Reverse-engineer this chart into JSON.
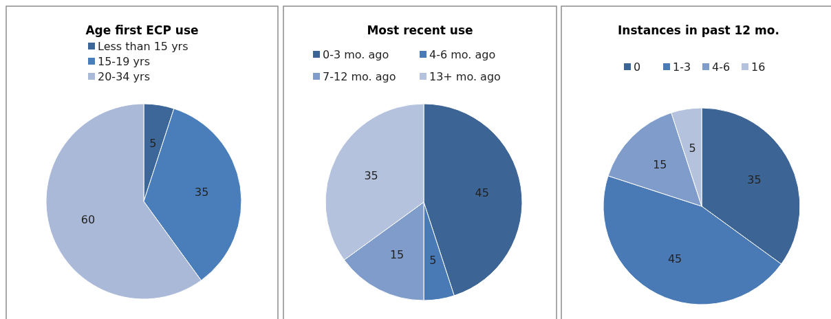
{
  "chart_data": [
    {
      "type": "pie",
      "title": "Age first ECP use",
      "categories": [
        "Less than 15 yrs",
        "15-19 yrs",
        "20-34 yrs"
      ],
      "values": [
        5,
        35,
        60
      ],
      "colors": [
        "#3d6799",
        "#4a7ebb",
        "#aab9d8"
      ],
      "data_labels": true,
      "legend": "top"
    },
    {
      "type": "pie",
      "title": "Most recent use",
      "categories": [
        "0-3 mo. ago",
        "4-6 mo. ago",
        "7-12 mo. ago",
        "13+ mo. ago"
      ],
      "values": [
        45,
        5,
        15,
        35
      ],
      "colors": [
        "#3c6494",
        "#4a7ab5",
        "#7f9cca",
        "#b4c2de"
      ],
      "data_labels": true,
      "legend": "top"
    },
    {
      "type": "pie",
      "title": "Instances in past 12 mo.",
      "categories": [
        "0",
        "1-3",
        "4-6",
        "16"
      ],
      "values": [
        35,
        45,
        15,
        5
      ],
      "colors": [
        "#3c6494",
        "#4a7ab5",
        "#7f9cca",
        "#b4c2de"
      ],
      "data_labels": true,
      "legend": "top"
    }
  ]
}
